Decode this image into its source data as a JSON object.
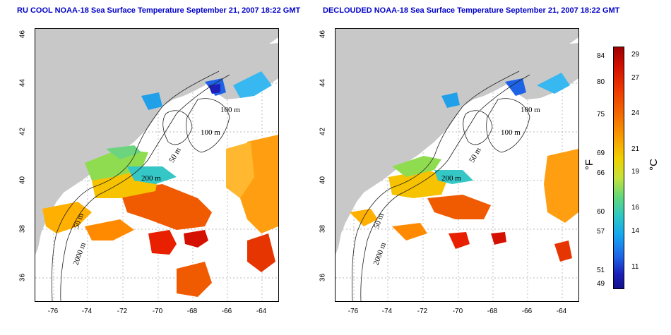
{
  "titles": {
    "left": "RU COOL NOAA-18 Sea Surface Temperature September 21, 2007 18:22 GMT",
    "right": "DECLOUDED NOAA-18 Sea Surface Temperature September 21, 2007 18:22 GMT"
  },
  "axes": {
    "lat_ticks": [
      "46",
      "44",
      "42",
      "40",
      "38",
      "36"
    ],
    "lon_ticks": [
      "-76",
      "-74",
      "-72",
      "-70",
      "-68",
      "-66",
      "-64"
    ],
    "lat_range": [
      35,
      46
    ],
    "lon_range": [
      -77.2,
      -63.2
    ],
    "grid": "dotted"
  },
  "contours": {
    "left": [
      "100 m",
      "100 m",
      "50 m",
      "200 m",
      "50 m",
      "2000 m"
    ],
    "right": [
      "100 m",
      "100 m",
      "50 m",
      "200 m",
      "50 m",
      "2000 m"
    ]
  },
  "colorbar": {
    "fahrenheit_label": "°F",
    "celsius_label": "°C",
    "fahrenheit_ticks": [
      "84",
      "80",
      "75",
      "69",
      "66",
      "60",
      "57",
      "51",
      "49"
    ],
    "celsius_ticks": [
      "29",
      "27",
      "24",
      "21",
      "19",
      "16",
      "14",
      "11"
    ]
  },
  "colors": {
    "land": "#c8c8c8",
    "title": "#0000c8",
    "ocean_nodata": "#ffffff"
  }
}
